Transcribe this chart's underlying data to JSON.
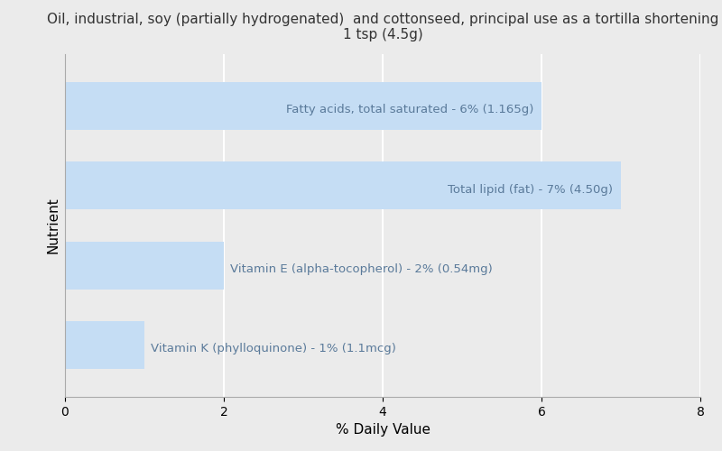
{
  "title": "Oil, industrial, soy (partially hydrogenated)  and cottonseed, principal use as a tortilla shortening\n1 tsp (4.5g)",
  "xlabel": "% Daily Value",
  "ylabel": "Nutrient",
  "background_color": "#ebebeb",
  "plot_background_color": "#ebebeb",
  "bar_color": "#c5ddf4",
  "xlim": [
    0,
    8
  ],
  "xticks": [
    0,
    2,
    4,
    6,
    8
  ],
  "nutrients": [
    "Vitamin K (phylloquinone) - 1% (1.1mcg)",
    "Vitamin E (alpha-tocopherol) - 2% (0.54mg)",
    "Total lipid (fat) - 7% (4.50g)",
    "Fatty acids, total saturated - 6% (1.165g)"
  ],
  "values": [
    1,
    2,
    7,
    6
  ],
  "label_threshold": 4,
  "title_fontsize": 11,
  "axis_label_fontsize": 11,
  "tick_fontsize": 10,
  "bar_label_fontsize": 9.5,
  "bar_label_color": "#5a7a9a",
  "bar_height": 0.6,
  "grid_color": "#ffffff",
  "grid_linewidth": 1.5,
  "spine_color": "#aaaaaa"
}
